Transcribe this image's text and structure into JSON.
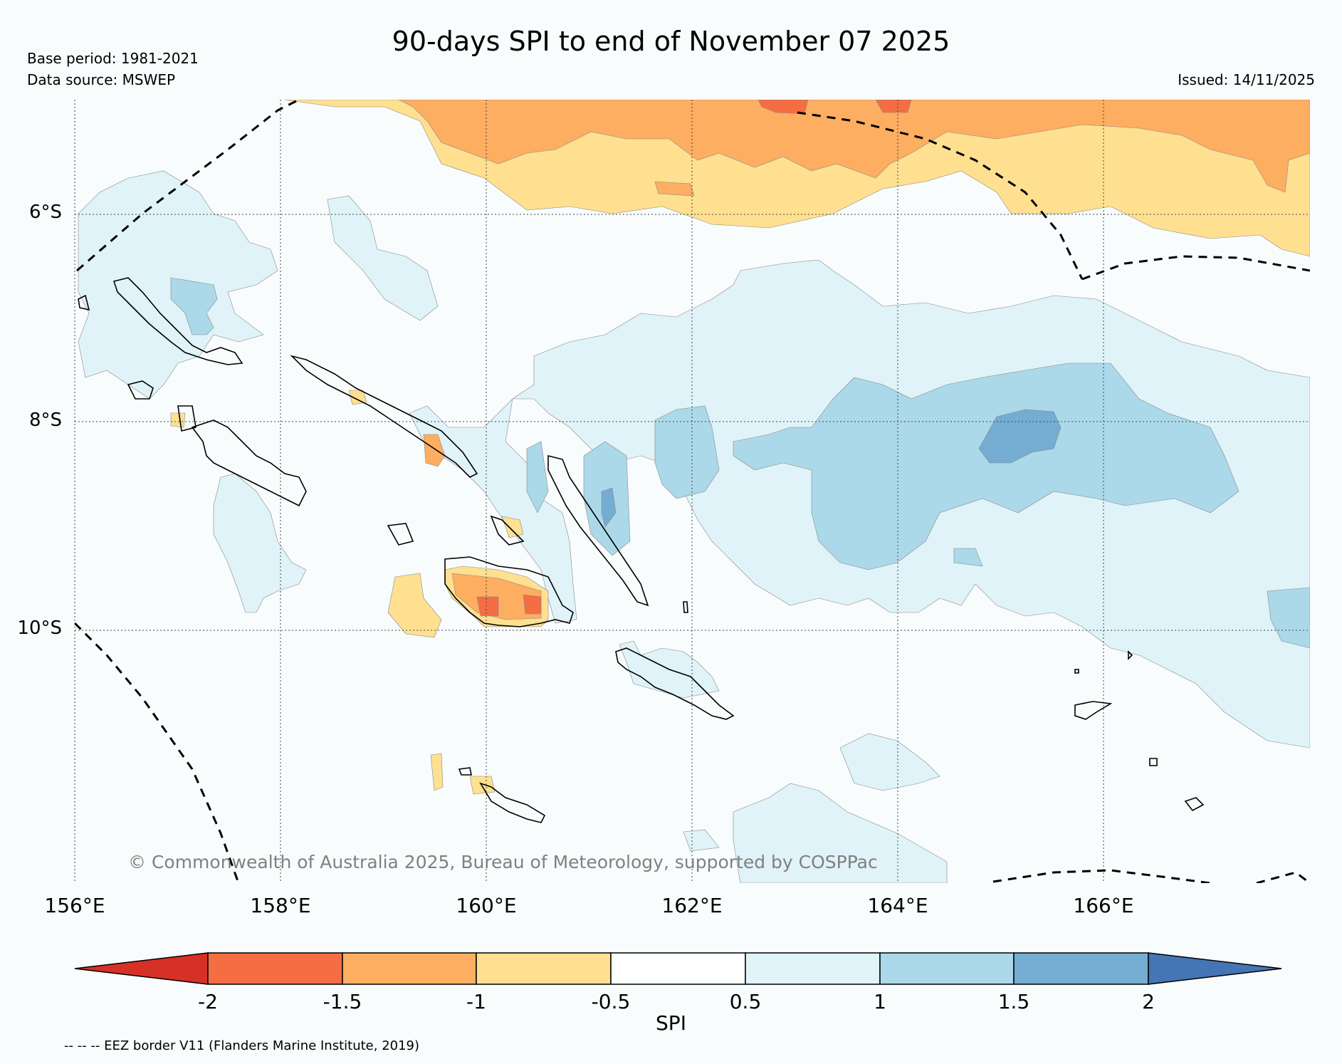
{
  "title": "90-days SPI to end of November 07 2025",
  "meta": {
    "base_period": "Base period: 1981-2021",
    "data_source": "Data source: MSWEP",
    "issued": "Issued: 14/11/2025"
  },
  "axes": {
    "lat_labels": [
      "6°S",
      "8°S",
      "10°S"
    ],
    "lon_labels": [
      "156°E",
      "158°E",
      "160°E",
      "162°E",
      "164°E",
      "166°E"
    ]
  },
  "credit": "© Commonwealth of Australia 2025, Bureau of Meteorology, supported by COSPPac",
  "colorbar": {
    "label": "SPI",
    "ticks": [
      "-2",
      "-1.5",
      "-1",
      "-0.5",
      "0.5",
      "1",
      "1.5",
      "2"
    ],
    "colors": [
      "#d73027",
      "#f46d43",
      "#fdae61",
      "#fee090",
      "#ffffff",
      "#e0f3f8",
      "#abd9e9",
      "#74add1",
      "#4575b4"
    ]
  },
  "legend_note": "-- -- -- EEZ border V11 (Flanders Marine Institute, 2019)"
}
